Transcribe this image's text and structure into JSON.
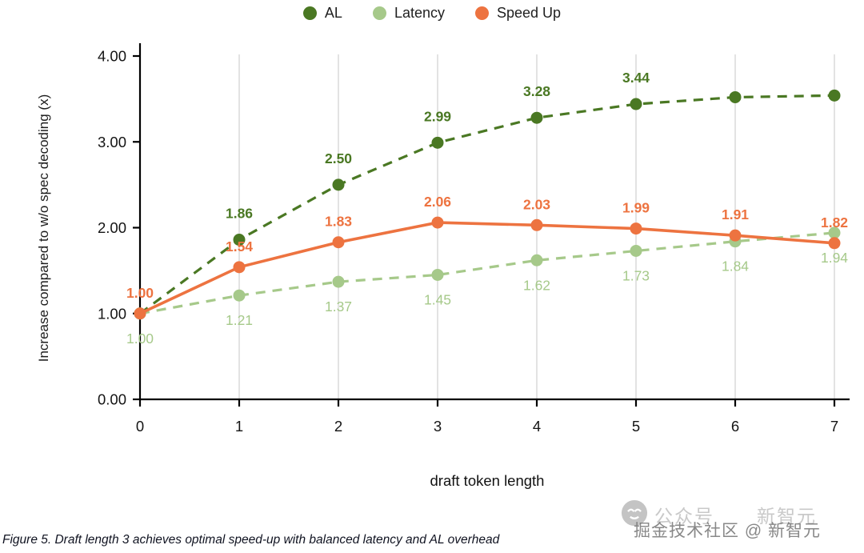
{
  "chart_data": {
    "type": "line",
    "title": "",
    "xlabel": "draft token length",
    "ylabel": "Increase compared to w/o spec decoding (x)",
    "x": [
      0,
      1,
      2,
      3,
      4,
      5,
      6,
      7
    ],
    "x_ticks": [
      "0",
      "1",
      "2",
      "3",
      "4",
      "5",
      "6",
      "7"
    ],
    "y_ticks": [
      "0.00",
      "1.00",
      "2.00",
      "3.00",
      "4.00"
    ],
    "xlim": [
      0,
      7
    ],
    "ylim": [
      0,
      4
    ],
    "grid": "vertical",
    "grid_color": "#dcdcdc",
    "legend_position": "top",
    "series": [
      {
        "name": "AL",
        "color": "#4a7823",
        "style": "dashed",
        "values": [
          1.0,
          1.86,
          2.5,
          2.99,
          3.28,
          3.44,
          3.52,
          3.54
        ],
        "point_labels": [
          "",
          "1.86",
          "2.50",
          "2.99",
          "3.28",
          "3.44",
          "",
          ""
        ],
        "label_side": "above",
        "label_dy": -27,
        "label_weight": 600
      },
      {
        "name": "Latency",
        "color": "#a6c98a",
        "style": "dashed",
        "values": [
          1.0,
          1.21,
          1.37,
          1.45,
          1.62,
          1.73,
          1.84,
          1.94
        ],
        "point_labels": [
          "1.00",
          "1.21",
          "1.37",
          "1.45",
          "1.62",
          "1.73",
          "1.84",
          "1.94"
        ],
        "label_side": "below",
        "label_dy": 37,
        "label_weight": 500
      },
      {
        "name": "Speed Up",
        "color": "#ed7340",
        "style": "solid",
        "values": [
          1.0,
          1.54,
          1.83,
          2.06,
          2.03,
          1.99,
          1.91,
          1.82
        ],
        "point_labels": [
          "1.00",
          "1.54",
          "1.83",
          "2.06",
          "2.03",
          "1.99",
          "1.91",
          "1.82"
        ],
        "label_side": "above",
        "label_dy": -20,
        "label_weight": 700
      }
    ]
  },
  "caption": "Figure 5. Draft length 3 achieves optimal speed-up with balanced latency and AL overhead",
  "watermark": {
    "icon": "wechat-official-account",
    "account_label": "公众号",
    "account_name": "新智元",
    "overlay_text": "掘金技术社区 @ 新智元"
  }
}
